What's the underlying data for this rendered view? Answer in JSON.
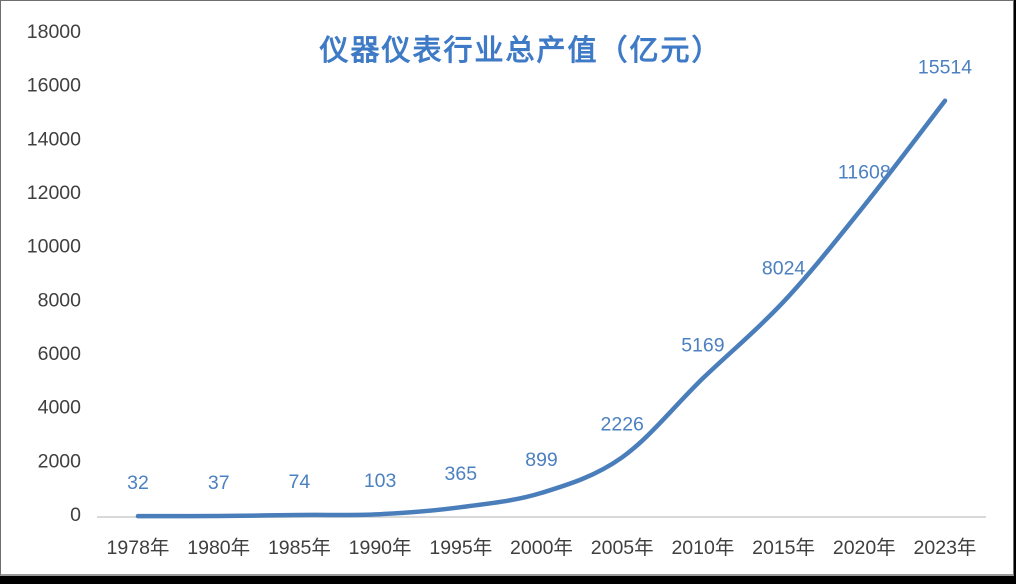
{
  "chart_data": {
    "type": "line",
    "title": "仪器仪表行业总产值（亿元）",
    "categories": [
      "1978年",
      "1980年",
      "1985年",
      "1990年",
      "1995年",
      "2000年",
      "2005年",
      "2010年",
      "2015年",
      "2020年",
      "2023年"
    ],
    "values": [
      32,
      37,
      74,
      103,
      365,
      899,
      2226,
      5169,
      8024,
      11608,
      15514
    ],
    "data_labels": [
      "32",
      "37",
      "74",
      "103",
      "365",
      "899",
      "2226",
      "5169",
      "8024",
      "11608",
      "15514"
    ],
    "ylim": [
      0,
      18000
    ],
    "ytick_step": 2000,
    "yticks": [
      0,
      2000,
      4000,
      6000,
      8000,
      10000,
      12000,
      14000,
      16000,
      18000
    ],
    "xlabel": "",
    "ylabel": "",
    "grid": false,
    "legend": "none",
    "smooth": true,
    "markers": "none",
    "colors": {
      "line": "#4A7EBB",
      "data_label": "#4C80C0",
      "title": "#3E7AC6",
      "axis_text": "#3F3F3F",
      "axis_line": "#D9D9D9",
      "plot_background": "#FFFFFF",
      "frame_bottom_bar": "#000000"
    }
  }
}
